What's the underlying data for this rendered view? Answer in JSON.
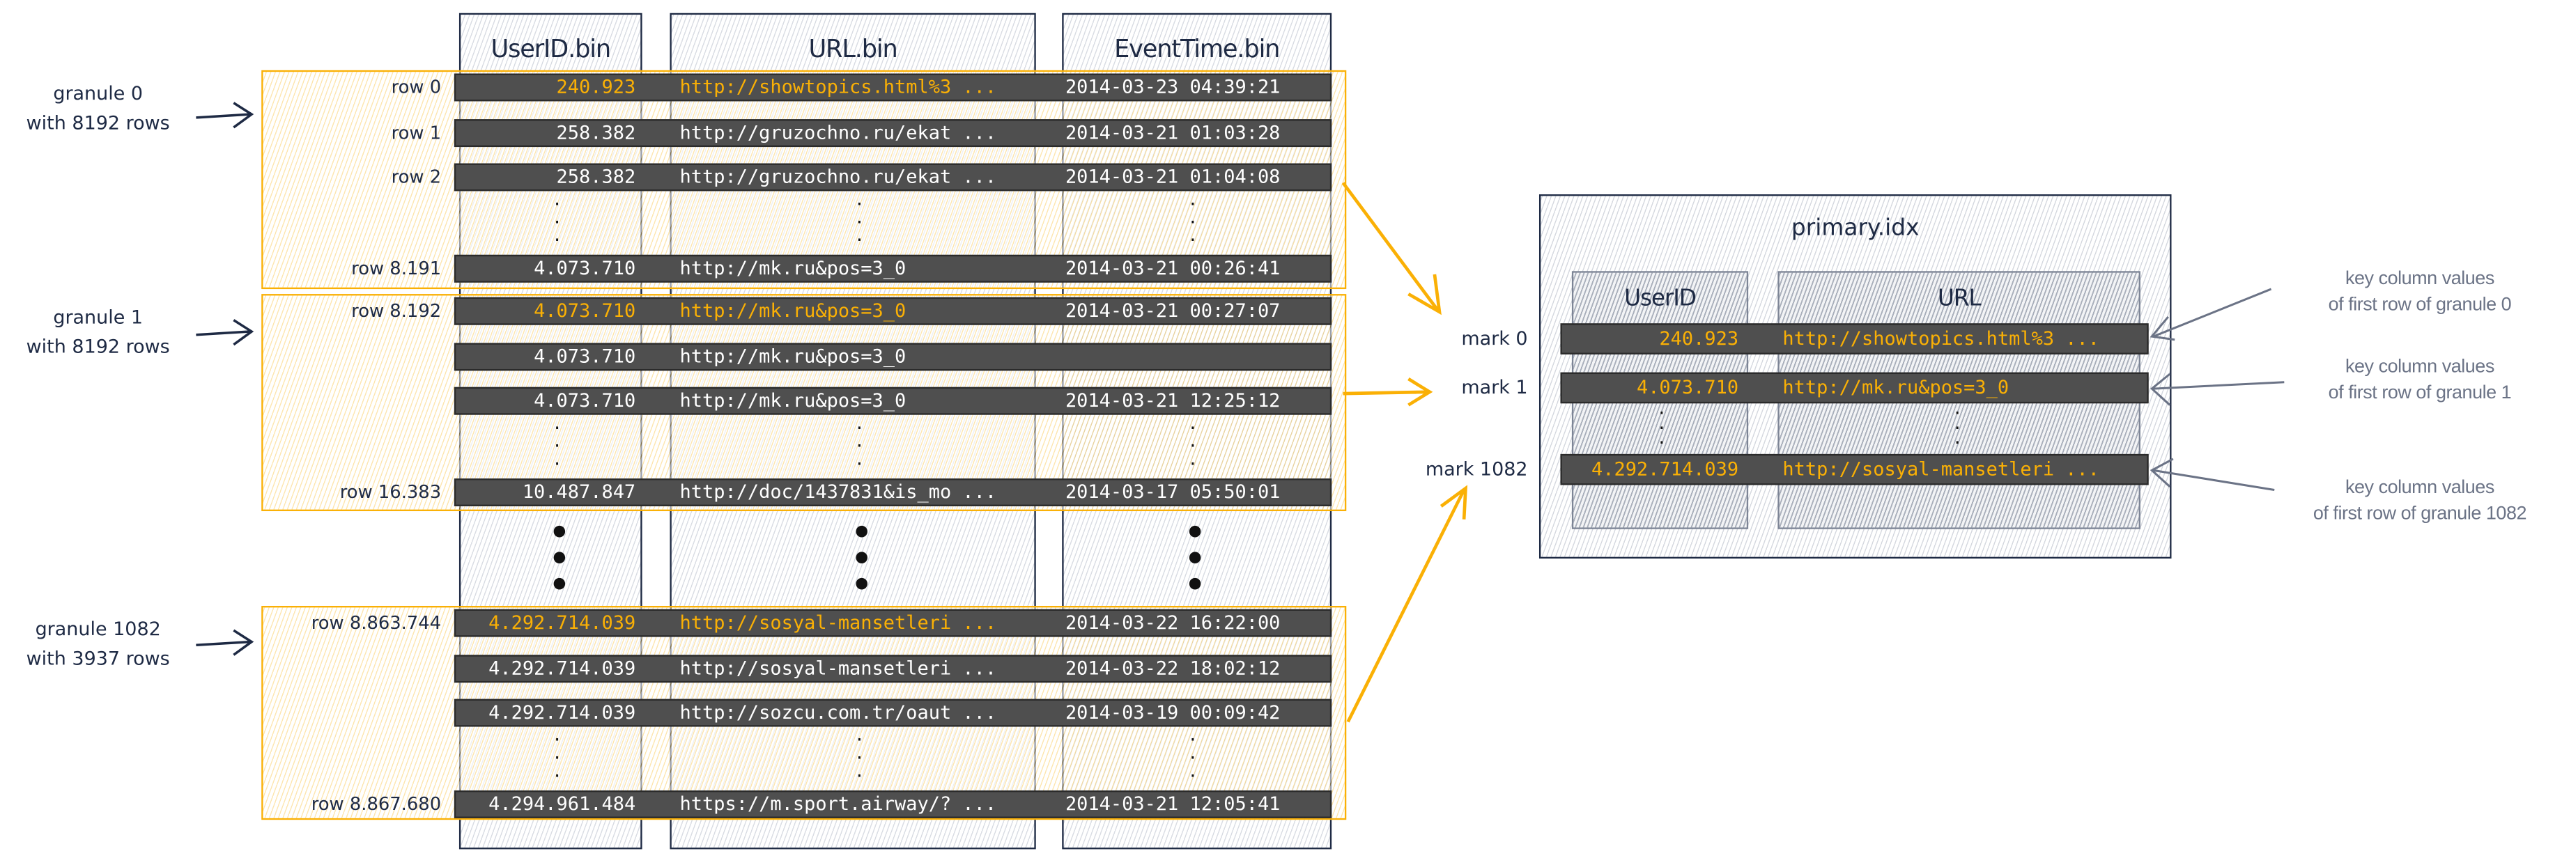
{
  "columns": [
    "UserID.bin",
    "URL.bin",
    "EventTime.bin"
  ],
  "granules": [
    {
      "label": "granule 0",
      "sublabel": "with 8192 rows",
      "rows": [
        {
          "row": "row 0",
          "userid": "240.923",
          "url": "http://showtopics.html%3 ...",
          "time": "2014-03-23 04:39:21",
          "highlight": true
        },
        {
          "row": "row 1",
          "userid": "258.382",
          "url": "http://gruzochno.ru/ekat ...",
          "time": "2014-03-21 01:03:28",
          "highlight": false
        },
        {
          "row": "row 2",
          "userid": "258.382",
          "url": "http://gruzochno.ru/ekat ...",
          "time": "2014-03-21 01:04:08",
          "highlight": false
        },
        {
          "row": "row 8.191",
          "userid": "4.073.710",
          "url": "http://mk.ru&pos=3_0",
          "time": "2014-03-21 00:26:41",
          "highlight": false
        }
      ]
    },
    {
      "label": "granule 1",
      "sublabel": "with 8192 rows",
      "rows": [
        {
          "row": "row 8.192",
          "userid": "4.073.710",
          "url": "http://mk.ru&pos=3_0",
          "time": "2014-03-21 00:27:07",
          "highlight": true
        },
        {
          "row": "",
          "userid": "4.073.710",
          "url": "http://mk.ru&pos=3_0",
          "time": "",
          "highlight": false
        },
        {
          "row": "",
          "userid": "4.073.710",
          "url": "http://mk.ru&pos=3_0",
          "time": "2014-03-21 12:25:12",
          "highlight": false
        },
        {
          "row": "row 16.383",
          "userid": "10.487.847",
          "url": "http://doc/1437831&is_mo ...",
          "time": "2014-03-17 05:50:01",
          "highlight": false
        }
      ]
    },
    {
      "label": "granule 1082",
      "sublabel": "with 3937 rows",
      "rows": [
        {
          "row": "row 8.863.744",
          "userid": "4.292.714.039",
          "url": "http://sosyal-mansetleri ...",
          "time": "2014-03-22 16:22:00",
          "highlight": true
        },
        {
          "row": "",
          "userid": "4.292.714.039",
          "url": "http://sosyal-mansetleri ...",
          "time": "2014-03-22 18:02:12",
          "highlight": false
        },
        {
          "row": "",
          "userid": "4.292.714.039",
          "url": "http://sozcu.com.tr/oaut ...",
          "time": "2014-03-19 00:09:42",
          "highlight": false
        },
        {
          "row": "row 8.867.680",
          "userid": "4.294.961.484",
          "url": "https://m.sport.airway/? ...",
          "time": "2014-03-21 12:05:41",
          "highlight": false
        }
      ]
    }
  ],
  "primary_index": {
    "title": "primary.idx",
    "columns": [
      "UserID",
      "URL"
    ],
    "marks": [
      {
        "label": "mark 0",
        "userid": "240.923",
        "url": "http://showtopics.html%3 ..."
      },
      {
        "label": "mark 1",
        "userid": "4.073.710",
        "url": "http://mk.ru&pos=3_0"
      },
      {
        "label": "mark 1082",
        "userid": "4.292.714.039",
        "url": "http://sosyal-mansetleri ..."
      }
    ]
  },
  "annotations": [
    {
      "line1": "key column values",
      "line2": "of first row of granule 0"
    },
    {
      "line1": "key column values",
      "line2": "of first row of granule 1"
    },
    {
      "line1": "key column values",
      "line2": "of first row of granule 1082"
    }
  ],
  "colors": {
    "highlight": "#fab005",
    "ink": "#1e2a44",
    "row_bar": "#4f4f4f",
    "annotation": "#6b7386"
  }
}
